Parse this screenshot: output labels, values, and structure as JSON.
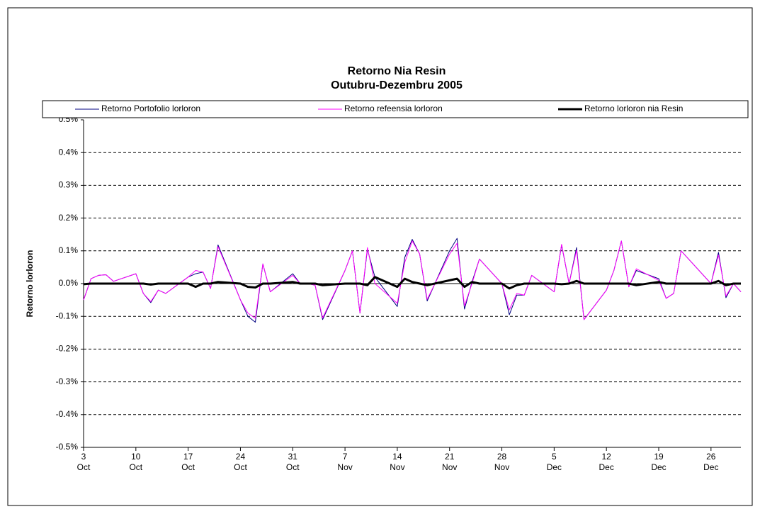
{
  "chart_data": {
    "type": "line",
    "title": "Retorno Nia Resin",
    "subtitle": "Outubru-Dezembru 2005",
    "y_label": "Retorno lorloron",
    "x": [
      "2005-10-03",
      "2005-10-04",
      "2005-10-05",
      "2005-10-06",
      "2005-10-07",
      "2005-10-10",
      "2005-10-11",
      "2005-10-12",
      "2005-10-13",
      "2005-10-14",
      "2005-10-17",
      "2005-10-18",
      "2005-10-19",
      "2005-10-20",
      "2005-10-21",
      "2005-10-24",
      "2005-10-25",
      "2005-10-26",
      "2005-10-27",
      "2005-10-28",
      "2005-10-31",
      "2005-11-01",
      "2005-11-02",
      "2005-11-03",
      "2005-11-04",
      "2005-11-07",
      "2005-11-08",
      "2005-11-09",
      "2005-11-10",
      "2005-11-11",
      "2005-11-14",
      "2005-11-15",
      "2005-11-16",
      "2005-11-17",
      "2005-11-18",
      "2005-11-21",
      "2005-11-22",
      "2005-11-23",
      "2005-11-24",
      "2005-11-25",
      "2005-11-28",
      "2005-11-29",
      "2005-11-30",
      "2005-12-01",
      "2005-12-02",
      "2005-12-05",
      "2005-12-06",
      "2005-12-07",
      "2005-12-08",
      "2005-12-09",
      "2005-12-12",
      "2005-12-13",
      "2005-12-14",
      "2005-12-15",
      "2005-12-16",
      "2005-12-19",
      "2005-12-20",
      "2005-12-21",
      "2005-12-22",
      "2005-12-23",
      "2005-12-26",
      "2005-12-27",
      "2005-12-28",
      "2005-12-29",
      "2005-12-30"
    ],
    "series": [
      {
        "name": "Retorno Portofolio lorloron",
        "color": "#000080",
        "width": 1,
        "values": [
          -0.05,
          0.015,
          0.025,
          0.027,
          0.007,
          0.03,
          -0.03,
          -0.058,
          -0.02,
          -0.03,
          0.02,
          0.03,
          0.035,
          -0.015,
          0.118,
          -0.05,
          -0.1,
          -0.118,
          0.06,
          -0.025,
          0.03,
          0.0,
          0.0,
          -0.005,
          -0.11,
          0.04,
          0.1,
          -0.09,
          0.105,
          0.02,
          -0.07,
          0.08,
          0.135,
          0.09,
          -0.053,
          0.1,
          0.138,
          -0.078,
          0.005,
          0.075,
          0.0,
          -0.095,
          -0.035,
          -0.035,
          0.025,
          -0.025,
          0.118,
          0.0,
          0.11,
          -0.11,
          -0.02,
          0.04,
          0.13,
          -0.01,
          0.04,
          0.015,
          -0.045,
          -0.03,
          0.1,
          0.075,
          0.0,
          0.095,
          -0.043,
          0.0,
          -0.025
        ]
      },
      {
        "name": "Retorno refeensia lorloron",
        "color": "#ff00ff",
        "width": 1,
        "values": [
          -0.05,
          0.015,
          0.025,
          0.027,
          0.007,
          0.03,
          -0.03,
          -0.055,
          -0.02,
          -0.03,
          0.02,
          0.04,
          0.035,
          -0.015,
          0.113,
          -0.05,
          -0.09,
          -0.106,
          0.06,
          -0.025,
          0.025,
          0.0,
          0.0,
          -0.005,
          -0.105,
          0.04,
          0.1,
          -0.09,
          0.11,
          0.0,
          -0.06,
          0.065,
          0.13,
          0.09,
          -0.048,
          0.09,
          0.123,
          -0.068,
          0.0,
          0.075,
          0.0,
          -0.08,
          -0.03,
          -0.035,
          0.025,
          -0.025,
          0.12,
          0.0,
          0.102,
          -0.11,
          -0.02,
          0.04,
          0.13,
          -0.01,
          0.045,
          0.01,
          -0.045,
          -0.03,
          0.1,
          0.075,
          0.0,
          0.087,
          -0.038,
          0.0,
          -0.025
        ]
      },
      {
        "name": "Retorno lorloron nia Resin",
        "color": "#000000",
        "width": 3,
        "values": [
          -0.002,
          0.0,
          0.0,
          0.0,
          0.0,
          0.0,
          0.0,
          -0.003,
          0.0,
          0.0,
          0.0,
          -0.01,
          0.0,
          0.0,
          0.005,
          0.0,
          -0.01,
          -0.012,
          0.0,
          0.0,
          0.005,
          0.0,
          0.0,
          0.0,
          -0.005,
          0.0,
          0.0,
          0.0,
          -0.005,
          0.02,
          -0.01,
          0.015,
          0.005,
          0.0,
          -0.005,
          0.01,
          0.015,
          -0.01,
          0.005,
          0.0,
          0.0,
          -0.015,
          -0.005,
          0.0,
          0.0,
          0.0,
          -0.002,
          0.0,
          0.008,
          0.0,
          0.0,
          0.0,
          0.0,
          0.0,
          -0.005,
          0.005,
          0.0,
          0.0,
          0.0,
          0.0,
          0.0,
          0.008,
          -0.005,
          0.0,
          0.0
        ]
      }
    ],
    "xlim": [
      "2005-10-03",
      "2005-12-30"
    ],
    "xticks": [
      {
        "value": "2005-10-03",
        "label": "3\nOct"
      },
      {
        "value": "2005-10-10",
        "label": "10\nOct"
      },
      {
        "value": "2005-10-17",
        "label": "17\nOct"
      },
      {
        "value": "2005-10-24",
        "label": "24\nOct"
      },
      {
        "value": "2005-10-31",
        "label": "31\nOct"
      },
      {
        "value": "2005-11-07",
        "label": "7\nNov"
      },
      {
        "value": "2005-11-14",
        "label": "14\nNov"
      },
      {
        "value": "2005-11-21",
        "label": "21\nNov"
      },
      {
        "value": "2005-11-28",
        "label": "28\nNov"
      },
      {
        "value": "2005-12-05",
        "label": "5\nDec"
      },
      {
        "value": "2005-12-12",
        "label": "12\nDec"
      },
      {
        "value": "2005-12-19",
        "label": "19\nDec"
      },
      {
        "value": "2005-12-26",
        "label": "26\nDec"
      }
    ],
    "ylim": [
      -0.5,
      0.5
    ],
    "yticks": [
      {
        "value": -0.5,
        "label": "-0.5%"
      },
      {
        "value": -0.4,
        "label": "-0.4%"
      },
      {
        "value": -0.3,
        "label": "-0.3%"
      },
      {
        "value": -0.2,
        "label": "-0.2%"
      },
      {
        "value": -0.1,
        "label": "-0.1%"
      },
      {
        "value": 0.0,
        "label": "0.0%"
      },
      {
        "value": 0.1,
        "label": "0.1%"
      },
      {
        "value": 0.2,
        "label": "0.2%"
      },
      {
        "value": 0.3,
        "label": "0.3%"
      },
      {
        "value": 0.4,
        "label": "0.4%"
      },
      {
        "value": 0.5,
        "label": "0.5%"
      }
    ],
    "grid": true,
    "legend": "top"
  }
}
